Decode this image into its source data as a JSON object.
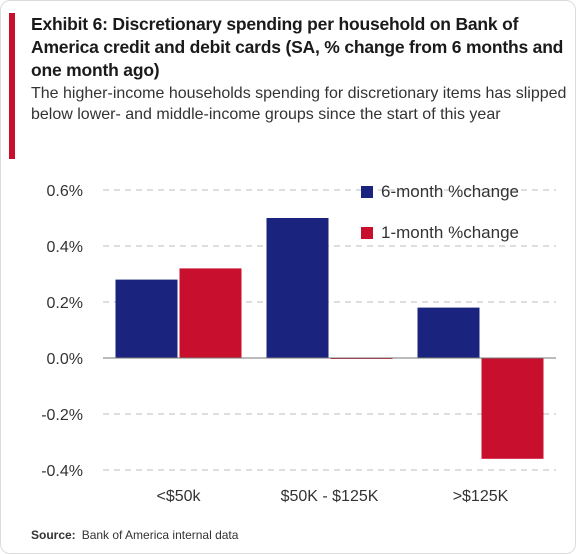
{
  "exhibit": {
    "title": "Exhibit 6: Discretionary spending per household on Bank of America credit and debit cards (SA, % change from 6 months and one month ago)",
    "subtitle": "The higher-income households spending for discretionary items has slipped below lower- and middle-income groups since the start of this year"
  },
  "source": {
    "label": "Source:",
    "text": "Bank of America internal data"
  },
  "colors": {
    "accent": "#c8102e",
    "six_month": "#1a237e",
    "one_month": "#c8102e",
    "grid": "#bdbdbd"
  },
  "chart_data": {
    "type": "bar",
    "categories": [
      "<$50k",
      "$50K - $125K",
      ">$125K"
    ],
    "series": [
      {
        "name": "6-month %change",
        "values": [
          0.28,
          0.5,
          0.18
        ],
        "color": "#1a237e"
      },
      {
        "name": "1-month %change",
        "values": [
          0.32,
          0.0,
          -0.36
        ],
        "color": "#c8102e"
      }
    ],
    "y_ticks": [
      "0.6%",
      "0.4%",
      "0.2%",
      "0.0%",
      "-0.2%",
      "-0.4%"
    ],
    "ylim": [
      -0.4,
      0.6
    ],
    "grid": true,
    "legend_position": "top-right"
  }
}
